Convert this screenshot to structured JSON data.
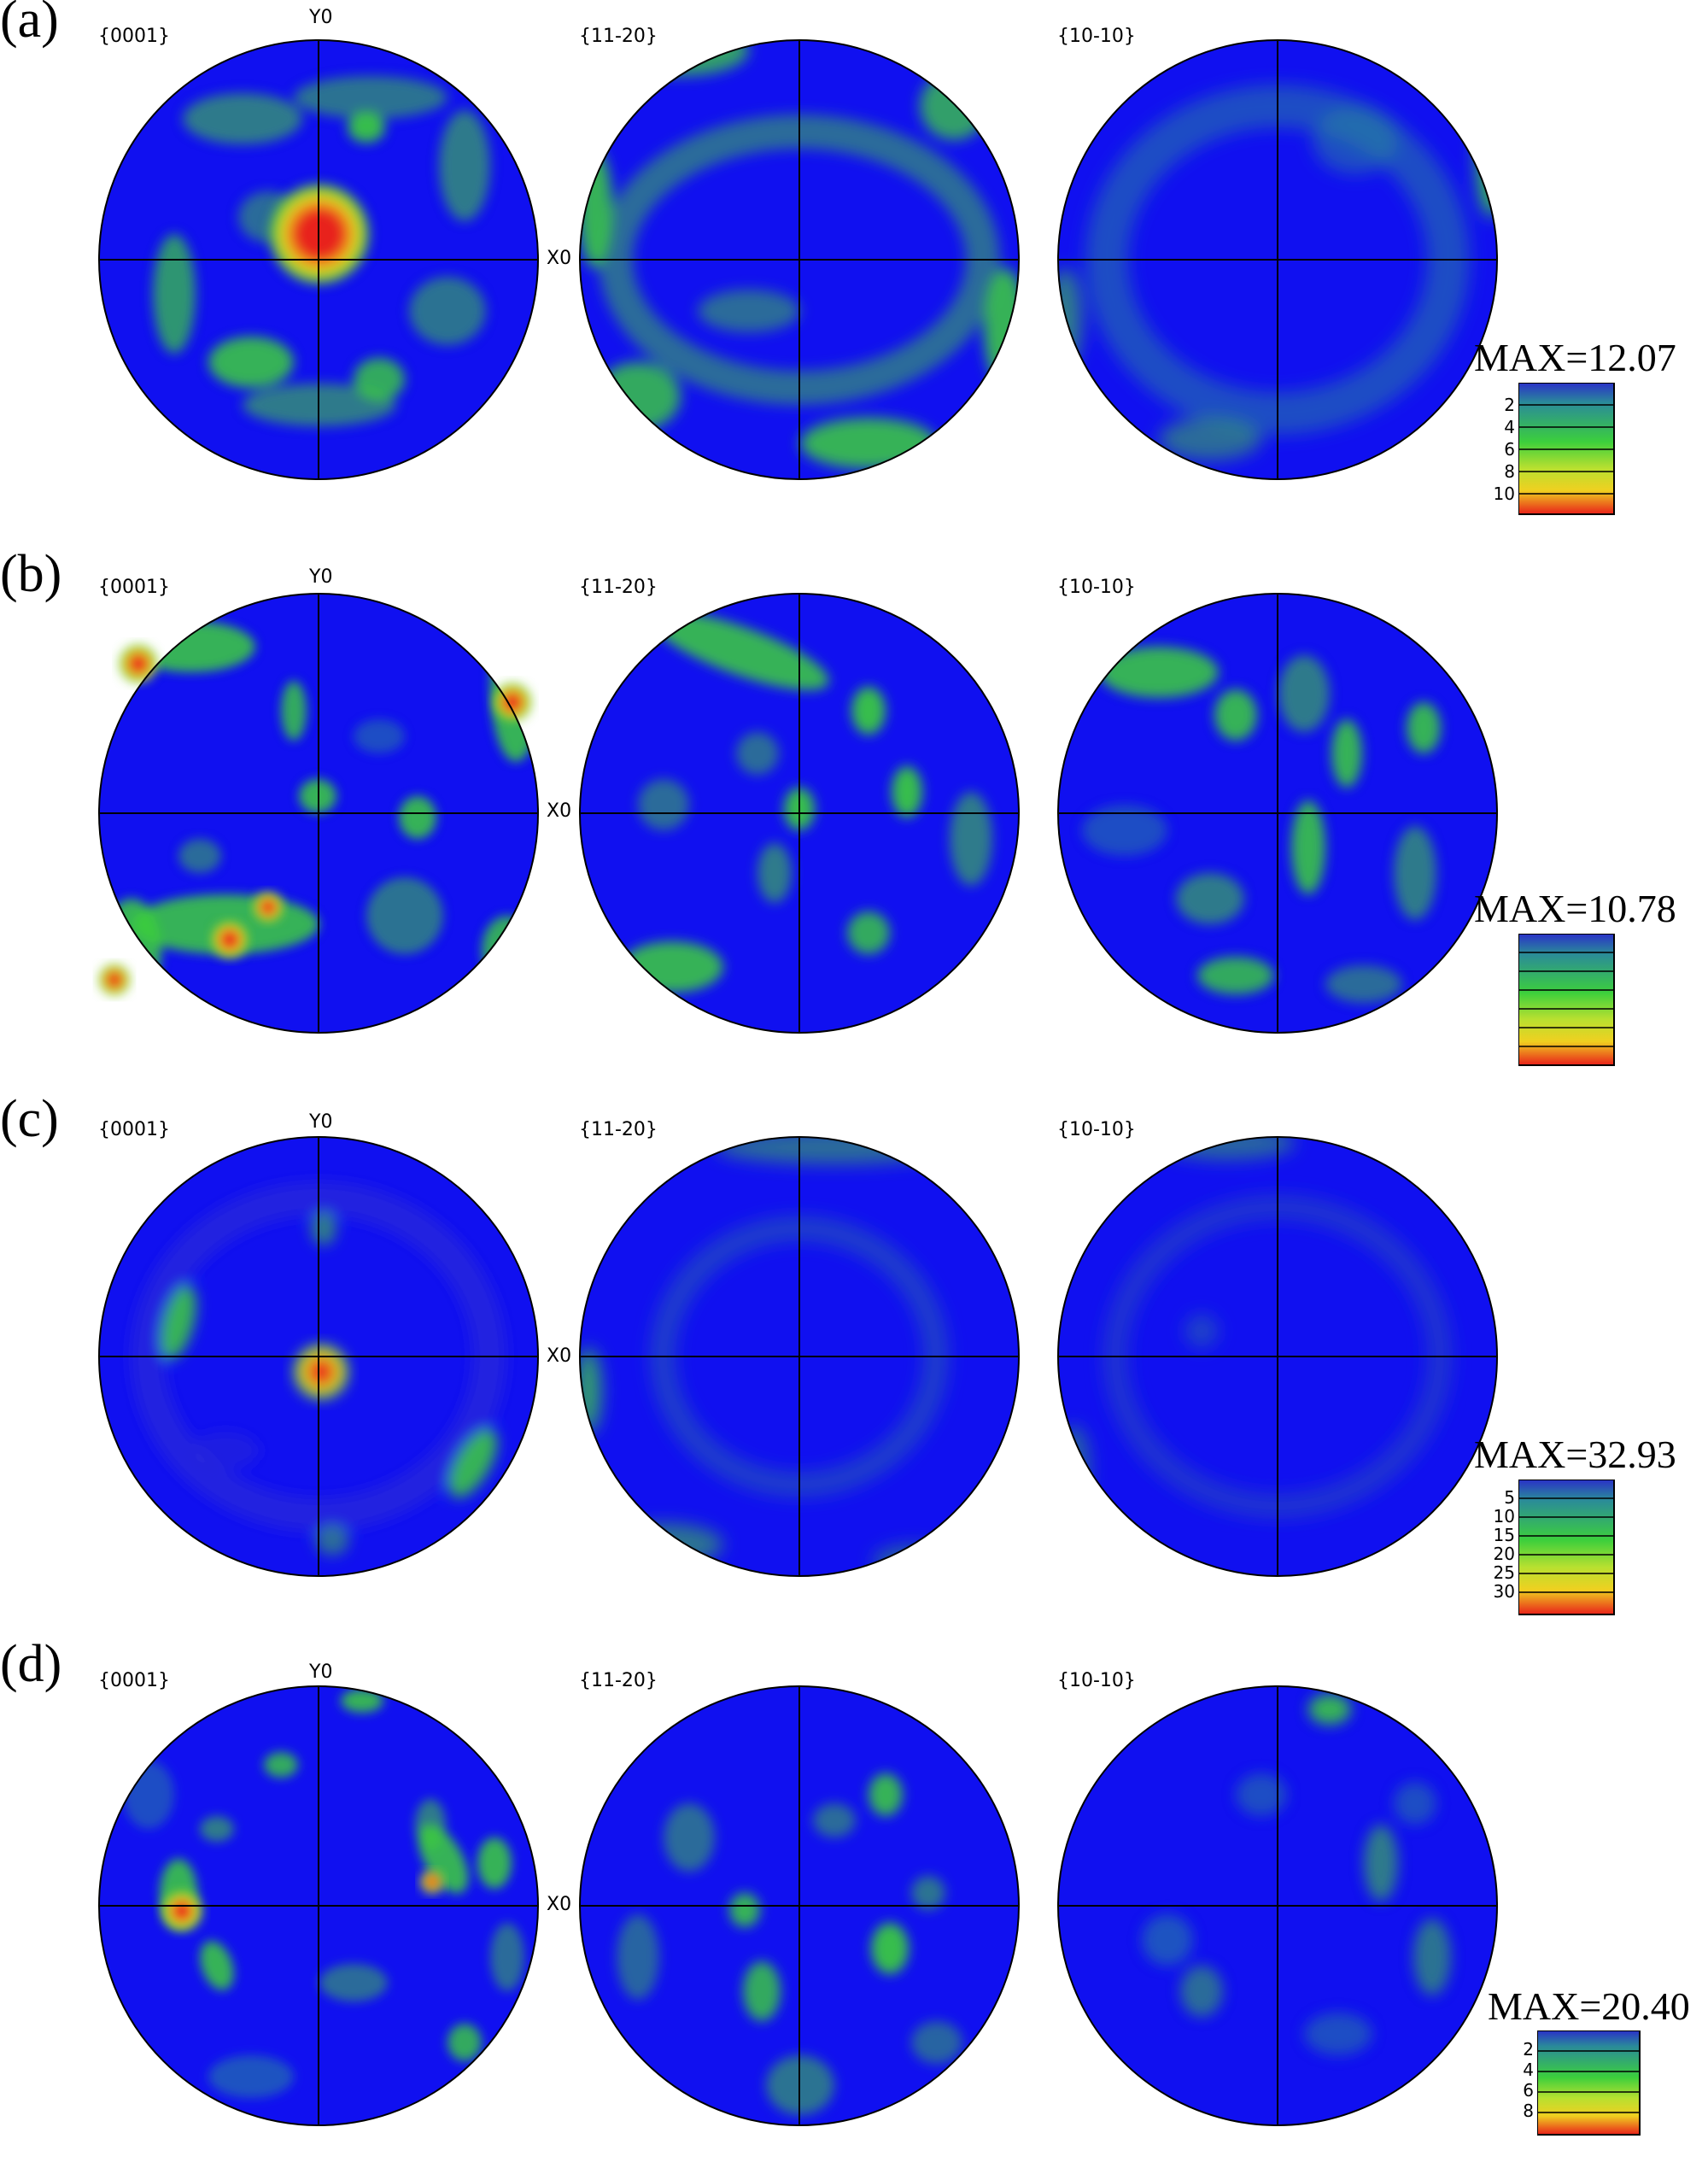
{
  "axis_labels": {
    "y": "Y0",
    "x": "X0"
  },
  "colors": {
    "background": "#1010f0",
    "low": "#2a2ad8",
    "mid": "#3ccf3c",
    "high": "#f0d020",
    "peak": "#e8201a",
    "legend_top": "#2a30c8"
  },
  "panels": [
    {
      "label": "(a)",
      "figures": [
        "{0001}",
        "{11-20}",
        "{10-10}"
      ],
      "max": "MAX=12.07",
      "legend_ticks": [
        "2",
        "4",
        "6",
        "8",
        "10"
      ]
    },
    {
      "label": "(b)",
      "figures": [
        "{0001}",
        "{11-20}",
        "{10-10}"
      ],
      "max": "MAX=10.78",
      "legend_ticks": []
    },
    {
      "label": "(c)",
      "figures": [
        "{0001}",
        "{11-20}",
        "{10-10}"
      ],
      "max": "MAX=32.93",
      "legend_ticks": [
        "5",
        "10",
        "15",
        "20",
        "25",
        "30"
      ]
    },
    {
      "label": "(d)",
      "figures": [
        "{0001}",
        "{11-20}",
        "{10-10}"
      ],
      "max": "MAX=20.40",
      "legend_ticks": [
        "2",
        "4",
        "6",
        "8"
      ]
    }
  ]
}
